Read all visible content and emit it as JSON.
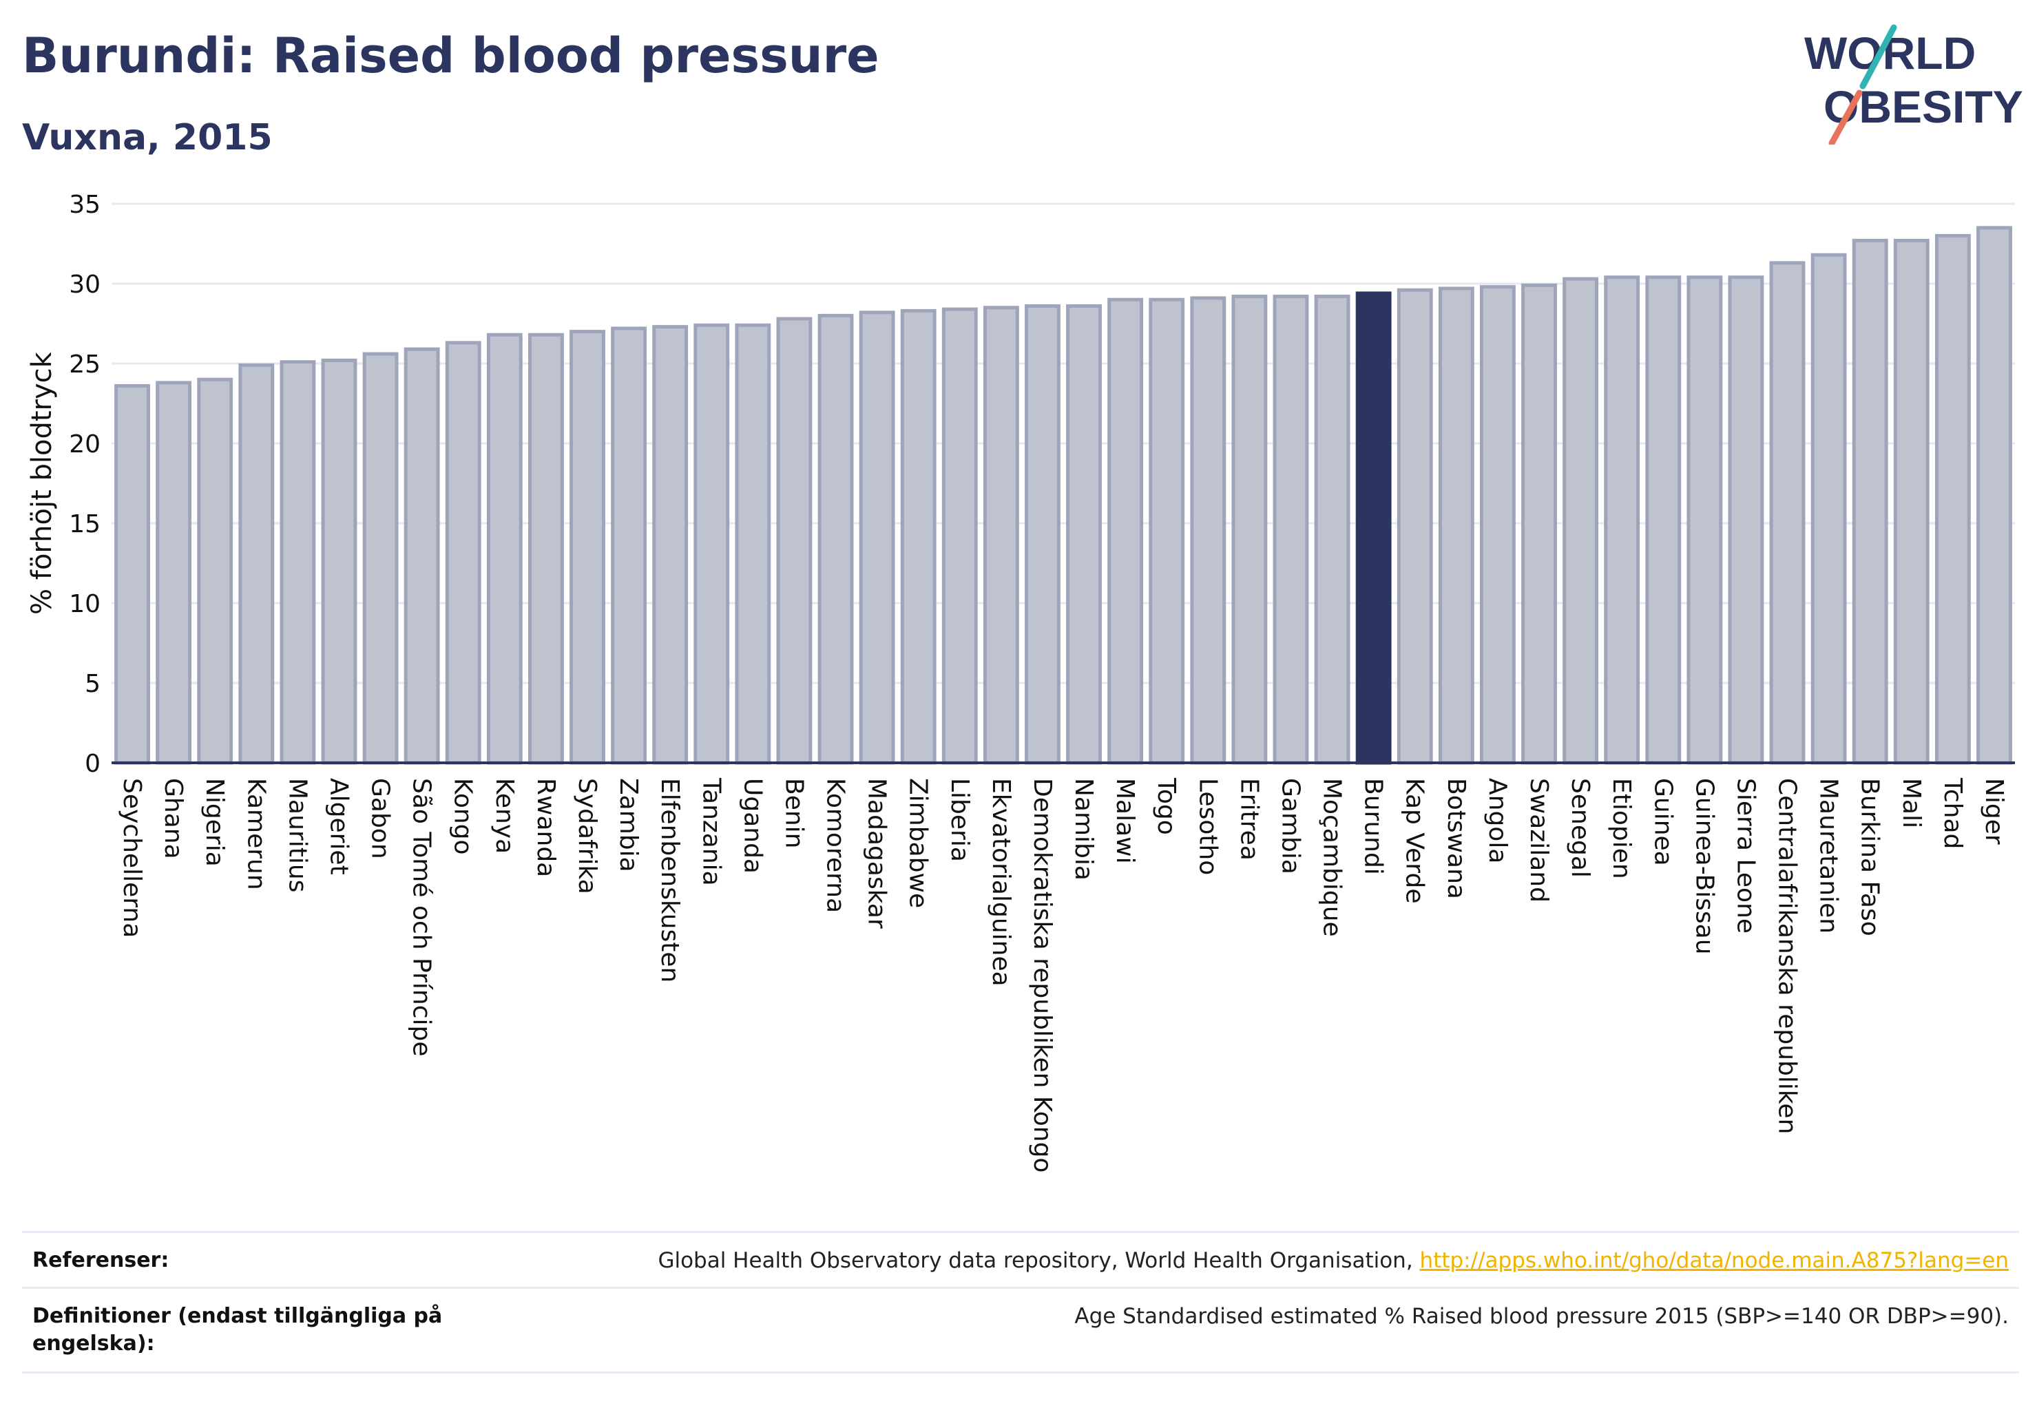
{
  "title": "Burundi: Raised blood pressure",
  "subtitle": "Vuxna, 2015",
  "logo": {
    "line1": "WORLD",
    "line2": "OBESITY",
    "accent_colors": [
      "#2fb3b3",
      "#e8735a"
    ]
  },
  "colors": {
    "bar": "#bfc3d0",
    "bar_edge": "#9ea5ba",
    "highlight": "#2c3560",
    "grid": "#e6e8ef",
    "axis": "#2c3560",
    "link": "#f0b400"
  },
  "chart_data": {
    "type": "bar",
    "title": "Burundi: Raised blood pressure",
    "subtitle": "Vuxna, 2015",
    "ylabel": "% förhöjt blodtryck",
    "xlabel": "",
    "ylim": [
      0,
      35
    ],
    "yticks": [
      0,
      5,
      10,
      15,
      20,
      25,
      30,
      35
    ],
    "grid": true,
    "highlight": "Burundi",
    "categories": [
      "Seychellerna",
      "Ghana",
      "Nigeria",
      "Kamerun",
      "Mauritius",
      "Algeriet",
      "Gabon",
      "São Tomé och Príncipe",
      "Kongo",
      "Kenya",
      "Rwanda",
      "Sydafrika",
      "Zambia",
      "Elfenbenskusten",
      "Tanzania",
      "Uganda",
      "Benin",
      "Komorerna",
      "Madagaskar",
      "Zimbabwe",
      "Liberia",
      "Ekvatorialguinea",
      "Demokratiska republiken Kongo",
      "Namibia",
      "Malawi",
      "Togo",
      "Lesotho",
      "Eritrea",
      "Gambia",
      "Moçambique",
      "Burundi",
      "Kap Verde",
      "Botswana",
      "Angola",
      "Swaziland",
      "Senegal",
      "Etiopien",
      "Guinea",
      "Guinea-Bissau",
      "Sierra Leone",
      "Centralafrikanska republiken",
      "Mauretanien",
      "Burkina Faso",
      "Mali",
      "Tchad",
      "Niger"
    ],
    "values": [
      23.6,
      23.8,
      24.0,
      24.9,
      25.1,
      25.2,
      25.6,
      25.9,
      26.3,
      26.8,
      26.8,
      27.0,
      27.2,
      27.3,
      27.4,
      27.4,
      27.8,
      28.0,
      28.2,
      28.3,
      28.4,
      28.5,
      28.6,
      28.6,
      29.0,
      29.0,
      29.1,
      29.2,
      29.2,
      29.2,
      29.4,
      29.6,
      29.7,
      29.8,
      29.9,
      30.3,
      30.4,
      30.4,
      30.4,
      30.4,
      31.3,
      31.8,
      32.7,
      32.7,
      33.0,
      33.5
    ]
  },
  "footer": {
    "references_label": "Referenser:",
    "references_text": "Global Health Observatory data repository, World Health Organisation, ",
    "references_link": "http://apps.who.int/gho/data/node.main.A875?lang=en",
    "definitions_label": "Definitioner (endast tillgängliga på engelska):",
    "definitions_text": "Age Standardised estimated % Raised blood pressure 2015 (SBP>=140 OR DBP>=90)."
  }
}
